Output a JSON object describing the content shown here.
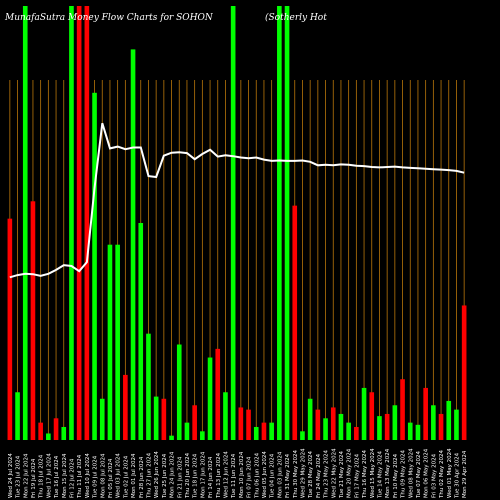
{
  "chart_data": {
    "type": "bar",
    "title_left": "MunafaSutra  Money Flow  Charts for SOHON",
    "title_right": "(Sotherly Hot",
    "categories": [
      "Wed 24 Jul 2024",
      "Tue 23 Jul 2024",
      "Mon 22 Jul 2024",
      "Fri 19 Jul 2024",
      "Thu 18 Jul 2024",
      "Wed 17 Jul 2024",
      "Tue 16 Jul 2024",
      "Mon 15 Jul 2024",
      "Fri 12 Jul 2024",
      "Thu 11 Jul 2024",
      "Wed 10 Jul 2024",
      "Tue 09 Jul 2024",
      "Mon 08 Jul 2024",
      "Fri 05 Jul 2024",
      "Wed 03 Jul 2024",
      "Tue 02 Jul 2024",
      "Mon 01 Jul 2024",
      "Fri 28 Jun 2024",
      "Thu 27 Jun 2024",
      "Wed 26 Jun 2024",
      "Tue 25 Jun 2024",
      "Mon 24 Jun 2024",
      "Fri 21 Jun 2024",
      "Thu 20 Jun 2024",
      "Tue 18 Jun 2024",
      "Mon 17 Jun 2024",
      "Fri 14 Jun 2024",
      "Thu 13 Jun 2024",
      "Wed 12 Jun 2024",
      "Tue 11 Jun 2024",
      "Mon 10 Jun 2024",
      "Fri 07 Jun 2024",
      "Thu 06 Jun 2024",
      "Wed 05 Jun 2024",
      "Tue 04 Jun 2024",
      "Mon 03 Jun 2024",
      "Fri 31 May 2024",
      "Thu 30 May 2024",
      "Wed 29 May 2024",
      "Tue 28 May 2024",
      "Fri 24 May 2024",
      "Thu 23 May 2024",
      "Wed 22 May 2024",
      "Tue 21 May 2024",
      "Mon 20 May 2024",
      "Fri 17 May 2024",
      "Thu 16 May 2024",
      "Wed 15 May 2024",
      "Tue 14 May 2024",
      "Mon 13 May 2024",
      "Fri 10 May 2024",
      "Thu 09 May 2024",
      "Wed 08 May 2024",
      "Tue 07 May 2024",
      "Mon 06 May 2024",
      "Fri 03 May 2024",
      "Thu 02 May 2024",
      "Wed 01 May 2024",
      "Tue 30 Apr 2024",
      "Mon 29 Apr 2024"
    ],
    "volumes": [
      51,
      11,
      100,
      55,
      4,
      1.5,
      5,
      3,
      100,
      100,
      100,
      80,
      9.5,
      45,
      45,
      15,
      90,
      50,
      24.5,
      10,
      9.5,
      1,
      22,
      4,
      8,
      2,
      19,
      21,
      11,
      100,
      7.5,
      7,
      3,
      4,
      4,
      100,
      100,
      54,
      2,
      9.5,
      7,
      5,
      7.5,
      6,
      4,
      3,
      12,
      11,
      5.5,
      6,
      8,
      14,
      4,
      3.5,
      12,
      8,
      6,
      9,
      7,
      31
    ],
    "flow": [
      "red",
      "green",
      "green",
      "red",
      "red",
      "green",
      "red",
      "green",
      "green",
      "red",
      "red",
      "green",
      "green",
      "green",
      "green",
      "red",
      "green",
      "green",
      "green",
      "green",
      "red",
      "green",
      "green",
      "green",
      "red",
      "green",
      "green",
      "red",
      "green",
      "green",
      "red",
      "red",
      "green",
      "red",
      "green",
      "green",
      "green",
      "red",
      "green",
      "green",
      "red",
      "green",
      "red",
      "green",
      "green",
      "red",
      "green",
      "red",
      "green",
      "red",
      "green",
      "red",
      "green",
      "green",
      "red",
      "green",
      "red",
      "green",
      "green",
      "red"
    ],
    "price_line": [
      37.5,
      38,
      38.3,
      38.2,
      37.8,
      38.3,
      39.2,
      40.3,
      40.1,
      38.9,
      41,
      58,
      73,
      67.2,
      67.6,
      67,
      67.4,
      67.4,
      60.8,
      60.6,
      65.5,
      66.2,
      66.3,
      66.1,
      64.7,
      65.9,
      66.9,
      65.3,
      65.6,
      65.4,
      65.1,
      64.9,
      65.1,
      64.6,
      64.3,
      64.4,
      64.3,
      64.3,
      64.4,
      64.1,
      63.3,
      63.4,
      63.3,
      63.5,
      63.4,
      63.2,
      63.1,
      62.9,
      62.8,
      62.9,
      63.0,
      62.8,
      62.7,
      62.6,
      62.5,
      62.4,
      62.3,
      62.2,
      62.0,
      61.6
    ],
    "colors": {
      "background": "#000000",
      "inflow": "#00ff00",
      "outflow": "#ff0000",
      "separator": "#b8760a",
      "price_line": "#ffffff"
    }
  }
}
